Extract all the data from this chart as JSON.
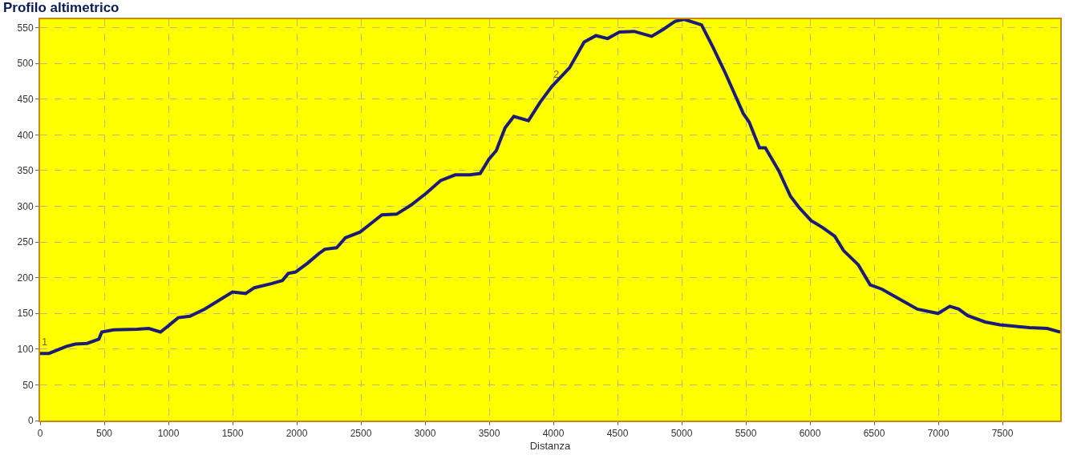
{
  "chart_data": {
    "type": "line",
    "title": "Profilo altimetrico",
    "xlabel": "Distanza",
    "x": [
      0,
      69,
      206,
      275,
      366,
      458,
      481,
      572,
      755,
      847,
      938,
      995,
      1076,
      1167,
      1281,
      1373,
      1499,
      1602,
      1670,
      1808,
      1888,
      1934,
      1991,
      2082,
      2174,
      2220,
      2311,
      2380,
      2494,
      2551,
      2664,
      2778,
      2893,
      3007,
      3121,
      3235,
      3350,
      3430,
      3498,
      3555,
      3624,
      3692,
      3806,
      3898,
      3989,
      4126,
      4240,
      4332,
      4423,
      4515,
      4629,
      4766,
      4858,
      4949,
      5018,
      5155,
      5246,
      5310,
      5342,
      5411,
      5480,
      5526,
      5606,
      5652,
      5756,
      5848,
      5917,
      6009,
      6101,
      6193,
      6262,
      6377,
      6469,
      6561,
      6699,
      6837,
      6998,
      7090,
      7159,
      7228,
      7366,
      7481,
      7596,
      7711,
      7849,
      7950
    ],
    "series": [
      {
        "color": "#1c1c78",
        "values": [
          94,
          94,
          104,
          107,
          108,
          114,
          124,
          127,
          128,
          129,
          124,
          132,
          144,
          146,
          156,
          166,
          180,
          178,
          186,
          192,
          196,
          206,
          208,
          220,
          234,
          240,
          242,
          256,
          264,
          272,
          288,
          289,
          302,
          318,
          336,
          344,
          344,
          346,
          366,
          378,
          410,
          426,
          420,
          446,
          468,
          494,
          530,
          539,
          535,
          544,
          545,
          538,
          548,
          559,
          562,
          554,
          522,
          498,
          486,
          458,
          430,
          418,
          382,
          382,
          350,
          314,
          298,
          280,
          270,
          258,
          238,
          218,
          190,
          184,
          170,
          156,
          150,
          160,
          156,
          147,
          138,
          134,
          132,
          130,
          129,
          124
        ]
      }
    ],
    "annotations": [
      {
        "text": "1",
        "x": 0,
        "y": 100
      },
      {
        "text": "2",
        "x": 3989,
        "y": 475
      }
    ],
    "xlim": [
      0,
      7950
    ],
    "ylim": [
      0,
      562
    ],
    "xticks": [
      0,
      500,
      1000,
      1500,
      2000,
      2500,
      3000,
      3500,
      4000,
      4500,
      5000,
      5500,
      6000,
      6500,
      7000,
      7500
    ],
    "yticks": [
      0,
      50,
      100,
      150,
      200,
      250,
      300,
      350,
      400,
      450,
      500,
      550
    ],
    "grid": true,
    "marker": "none",
    "line_style": "solid"
  }
}
